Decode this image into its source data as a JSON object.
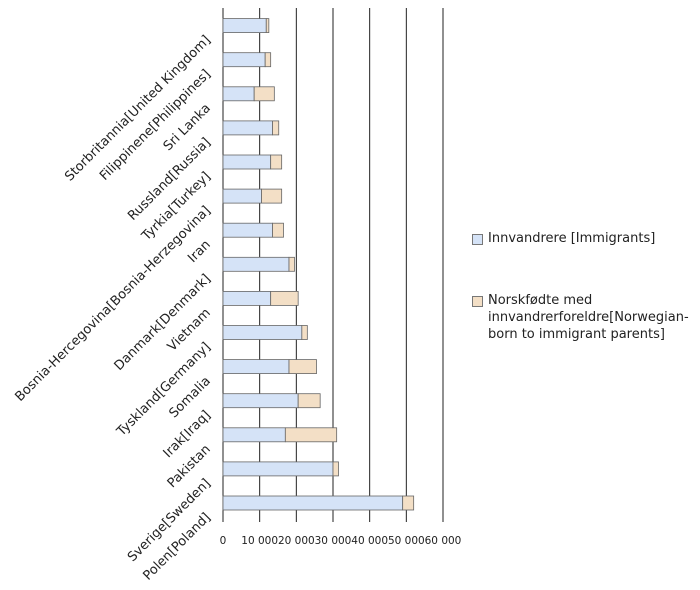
{
  "chart_data": {
    "type": "bar",
    "orientation": "horizontal",
    "stacked": true,
    "categories": [
      "Polen[Poland]",
      "Sverige[Sweden]",
      "Pakistan",
      "Irak[Iraq]",
      "Somalia",
      "Tyskland[Germany]",
      "Vietnam",
      "Danmark[Denmark]",
      "Iran",
      "Bosnia-Hercegovina[Bosnia-Herzegovina]",
      "Tyrkia[Turkey]",
      "Russland[Russia]",
      "Sri Lanka",
      "Filippinene[Philippines]",
      "Storbritannia[United Kingdom]"
    ],
    "series": [
      {
        "name": "Innvandrere [Immigrants]",
        "color": "#d5e3f7",
        "values": [
          49000,
          30000,
          17000,
          20500,
          18000,
          21500,
          13000,
          18000,
          13500,
          10500,
          13000,
          13500,
          8500,
          11500,
          11800
        ]
      },
      {
        "name": "Norskfødte med innvandrerforeldre[Norwegian-born to immigrant parents]",
        "color": "#f3dfc6",
        "values": [
          3000,
          1500,
          14000,
          6000,
          7500,
          1500,
          7500,
          1500,
          3000,
          5500,
          3000,
          1700,
          5500,
          1500,
          700
        ]
      }
    ],
    "xlim": [
      0,
      60000
    ],
    "xticks": [
      "0",
      "10 000",
      "20 000",
      "30 000",
      "40 000",
      "50 000",
      "60 000"
    ],
    "grid": "vertical",
    "legend_position": "right"
  },
  "legend": {
    "items": [
      {
        "lines": [
          "Innvandrere [Immigrants]"
        ]
      },
      {
        "lines": [
          "Norskfødte med",
          "innvandrerforeldre[Norwegian-",
          "born to immigrant parents]"
        ]
      }
    ]
  }
}
